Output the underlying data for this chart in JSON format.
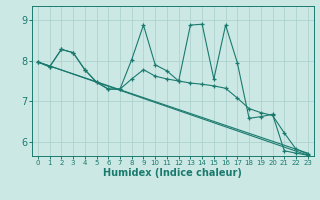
{
  "title": "",
  "xlabel": "Humidex (Indice chaleur)",
  "bg_color": "#cce8e5",
  "grid_color": "#aacfcc",
  "line_color": "#1a7a6e",
  "xlim": [
    -0.5,
    23.5
  ],
  "ylim": [
    5.65,
    9.35
  ],
  "xticks": [
    0,
    1,
    2,
    3,
    4,
    5,
    6,
    7,
    8,
    9,
    10,
    11,
    12,
    13,
    14,
    15,
    16,
    17,
    18,
    19,
    20,
    21,
    22,
    23
  ],
  "yticks": [
    6,
    7,
    8,
    9
  ],
  "line1_x": [
    0,
    1,
    2,
    3,
    4,
    5,
    6,
    7,
    8,
    9,
    10,
    11,
    12,
    13,
    14,
    15,
    16,
    17,
    18,
    19,
    20,
    21,
    22,
    23
  ],
  "line1_y": [
    7.97,
    7.85,
    8.28,
    8.2,
    7.78,
    7.47,
    7.3,
    7.3,
    8.03,
    8.88,
    7.9,
    7.75,
    7.5,
    8.88,
    8.9,
    7.55,
    8.88,
    7.95,
    6.58,
    6.62,
    6.68,
    5.78,
    5.72,
    5.67
  ],
  "line2_x": [
    0,
    1,
    2,
    3,
    4,
    5,
    6,
    7,
    8,
    9,
    10,
    11,
    12,
    13,
    14,
    15,
    16,
    17,
    18,
    19,
    20,
    21,
    22,
    23
  ],
  "line2_y": [
    7.97,
    7.85,
    8.28,
    8.2,
    7.78,
    7.47,
    7.3,
    7.3,
    7.55,
    7.78,
    7.62,
    7.55,
    7.5,
    7.45,
    7.42,
    7.38,
    7.32,
    7.08,
    6.82,
    6.72,
    6.65,
    6.22,
    5.82,
    5.7
  ],
  "line3_x": [
    0,
    23
  ],
  "line3_y": [
    7.97,
    5.72
  ],
  "line4_x": [
    0,
    23
  ],
  "line4_y": [
    7.97,
    5.67
  ]
}
